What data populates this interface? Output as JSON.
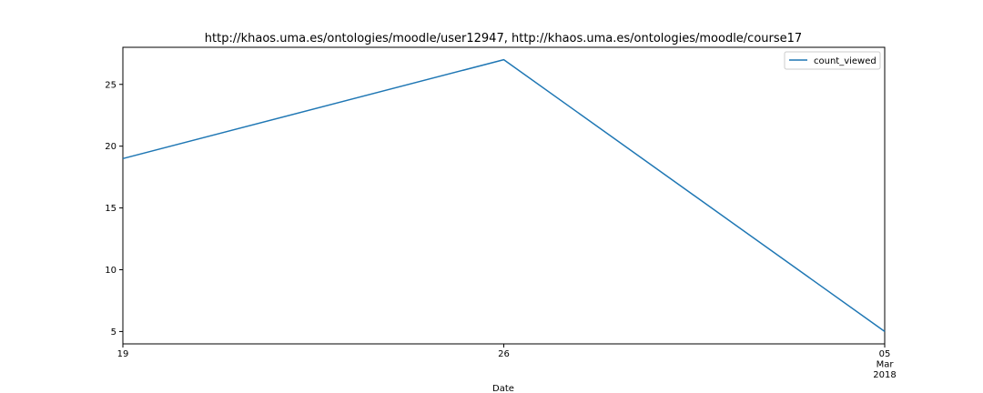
{
  "chart_data": {
    "type": "line",
    "title": "http://khaos.uma.es/ontologies/moodle/user12947, http://khaos.uma.es/ontologies/moodle/course17",
    "xlabel": "Date",
    "ylabel": "",
    "x": [
      "2018-02-19",
      "2018-02-26",
      "2018-03-05"
    ],
    "x_tick_labels": [
      {
        "date": "2018-02-19",
        "lines": [
          "19"
        ]
      },
      {
        "date": "2018-02-26",
        "lines": [
          "26"
        ]
      },
      {
        "date": "2018-03-05",
        "lines": [
          "05",
          "Mar",
          "2018"
        ]
      }
    ],
    "series": [
      {
        "name": "count_viewed",
        "values": [
          19,
          27,
          5
        ],
        "color": "#1f77b4"
      }
    ],
    "y_ticks": [
      "5",
      "10",
      "15",
      "20",
      "25"
    ],
    "ylim": [
      4,
      28
    ],
    "grid": false,
    "legend_position": "top-right"
  }
}
